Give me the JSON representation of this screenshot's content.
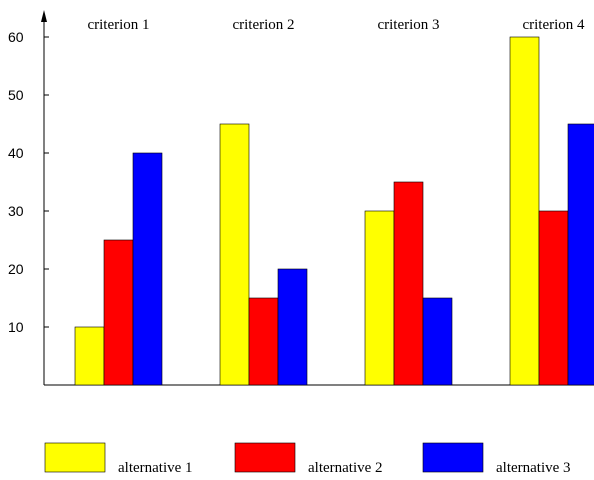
{
  "chart_data": {
    "type": "bar",
    "title": "",
    "xlabel": "",
    "ylabel": "",
    "ylim": [
      0,
      65
    ],
    "grid": false,
    "legend_position": "bottom",
    "yticks": [
      "10",
      "20",
      "30",
      "40",
      "50",
      "60"
    ],
    "categories": [
      "criterion 1",
      "criterion 2",
      "criterion 3",
      "criterion 4"
    ],
    "series": [
      {
        "name": "alternative 1",
        "color": "#ffff00",
        "values": [
          10,
          45,
          30,
          60
        ]
      },
      {
        "name": "alternative 2",
        "color": "#ff0000",
        "values": [
          25,
          15,
          35,
          30
        ]
      },
      {
        "name": "alternative 3",
        "color": "#0000ff",
        "values": [
          40,
          20,
          15,
          45
        ]
      }
    ]
  }
}
